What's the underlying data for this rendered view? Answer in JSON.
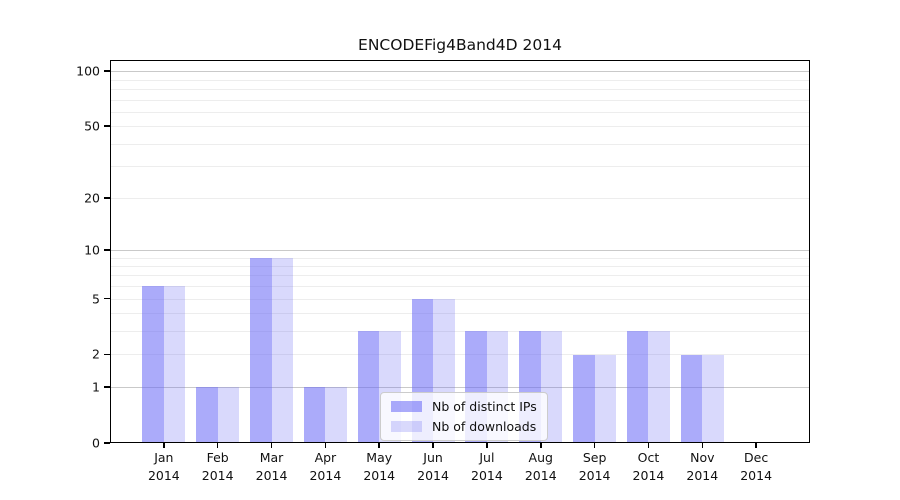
{
  "chart_data": {
    "type": "bar",
    "title": "ENCODEFig4Band4D 2014",
    "categories": [
      "Jan 2014",
      "Feb 2014",
      "Mar 2014",
      "Apr 2014",
      "May 2014",
      "Jun 2014",
      "Jul 2014",
      "Aug 2014",
      "Sep 2014",
      "Oct 2014",
      "Nov 2014",
      "Dec 2014"
    ],
    "series": [
      {
        "name": "Nb of distinct IPs",
        "color": "rgba(102,102,245,0.55)",
        "values": [
          6,
          1,
          9,
          1,
          3,
          5,
          3,
          3,
          2,
          3,
          2,
          0
        ]
      },
      {
        "name": "Nb of downloads",
        "color": "rgba(102,102,245,0.25)",
        "values": [
          6,
          1,
          9,
          1,
          3,
          5,
          3,
          3,
          2,
          3,
          2,
          0
        ]
      }
    ],
    "xlabel": "",
    "ylabel": "",
    "yscale": "log1p",
    "ylim": [
      0,
      115
    ],
    "yticks": [
      0,
      1,
      2,
      5,
      10,
      20,
      50,
      100
    ],
    "grid": {
      "major_values": [
        1,
        10,
        100
      ],
      "minor_values": [
        2,
        3,
        4,
        5,
        6,
        7,
        8,
        9,
        20,
        30,
        40,
        50,
        60,
        70,
        80,
        90
      ],
      "major_color": "#c9c9c9",
      "minor_color": "#ededed"
    },
    "legend": {
      "position": "lower-center"
    },
    "axis_color": "#000000",
    "background_color": "#ffffff"
  }
}
